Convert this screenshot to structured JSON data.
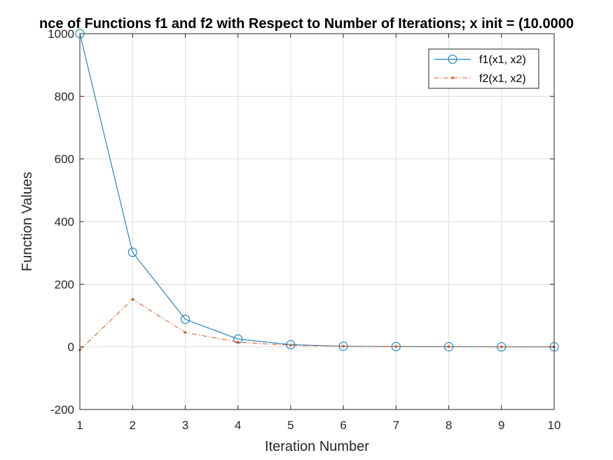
{
  "chart_data": {
    "type": "line",
    "title": "nce of Functions f1 and f2 with Respect to Number of Iterations; x init = (10.0000",
    "xlabel": "Iteration Number",
    "ylabel": "Function Values",
    "xlim": [
      1,
      10
    ],
    "ylim": [
      -200,
      1000
    ],
    "xticks": [
      1,
      2,
      3,
      4,
      5,
      6,
      7,
      8,
      9,
      10
    ],
    "yticks": [
      -200,
      0,
      200,
      400,
      600,
      800,
      1000
    ],
    "grid": true,
    "legend_position": "top-right",
    "x": [
      1,
      2,
      3,
      4,
      5,
      6,
      7,
      8,
      9,
      10
    ],
    "series": [
      {
        "name": "f1(x1, x2)",
        "values": [
          1000,
          302,
          88,
          25,
          7,
          2,
          1,
          0.5,
          0,
          0
        ],
        "color": "#0072BD",
        "line_style": "solid",
        "marker": "circle"
      },
      {
        "name": "f2(x1, x2)",
        "values": [
          -10,
          152,
          46,
          15,
          5,
          2,
          1,
          1,
          0,
          0
        ],
        "color": "#D95319",
        "line_style": "dash-dot",
        "marker": "point"
      }
    ]
  }
}
